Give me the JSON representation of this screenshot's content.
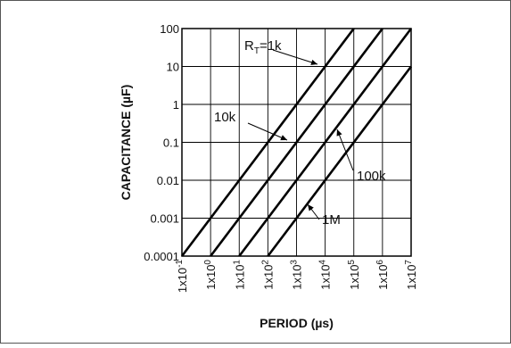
{
  "chart_data": {
    "type": "line",
    "title": "",
    "xlabel": "PERIOD (µs)",
    "ylabel": "CAPACITANCE (µF)",
    "x_scale": "log",
    "y_scale": "log",
    "xlim": [
      0.1,
      10000000
    ],
    "ylim": [
      0.0001,
      100
    ],
    "grid": true,
    "legend": "none",
    "x_ticks": [
      {
        "value": 0.1,
        "base": "1x10",
        "exp": "-1"
      },
      {
        "value": 1,
        "base": "1x10",
        "exp": "0"
      },
      {
        "value": 10,
        "base": "1x10",
        "exp": "1"
      },
      {
        "value": 100,
        "base": "1x10",
        "exp": "2"
      },
      {
        "value": 1000,
        "base": "1x10",
        "exp": "3"
      },
      {
        "value": 10000,
        "base": "1x10",
        "exp": "4"
      },
      {
        "value": 100000,
        "base": "1x10",
        "exp": "5"
      },
      {
        "value": 1000000,
        "base": "1x10",
        "exp": "6"
      },
      {
        "value": 10000000,
        "base": "1x10",
        "exp": "7"
      }
    ],
    "y_ticks": [
      {
        "value": 0.0001,
        "label": "0.0001"
      },
      {
        "value": 0.001,
        "label": "0.001"
      },
      {
        "value": 0.01,
        "label": "0.01"
      },
      {
        "value": 0.1,
        "label": "0.1"
      },
      {
        "value": 1,
        "label": "1"
      },
      {
        "value": 10,
        "label": "10"
      },
      {
        "value": 100,
        "label": "100"
      }
    ],
    "series": [
      {
        "label_main": "R",
        "label_sub": "T",
        "label_rest": "=1k",
        "x": [
          0.1,
          100000
        ],
        "y": [
          0.0001,
          100
        ]
      },
      {
        "label_main": "10k",
        "x": [
          1,
          1000000
        ],
        "y": [
          0.0001,
          100
        ]
      },
      {
        "label_main": "100k",
        "x": [
          10,
          10000000
        ],
        "y": [
          0.0001,
          100
        ]
      },
      {
        "label_main": "1M",
        "x": [
          100,
          10000000
        ],
        "y": [
          0.0001,
          10
        ]
      }
    ],
    "line_color": "#000000",
    "grid_color": "#000000"
  }
}
